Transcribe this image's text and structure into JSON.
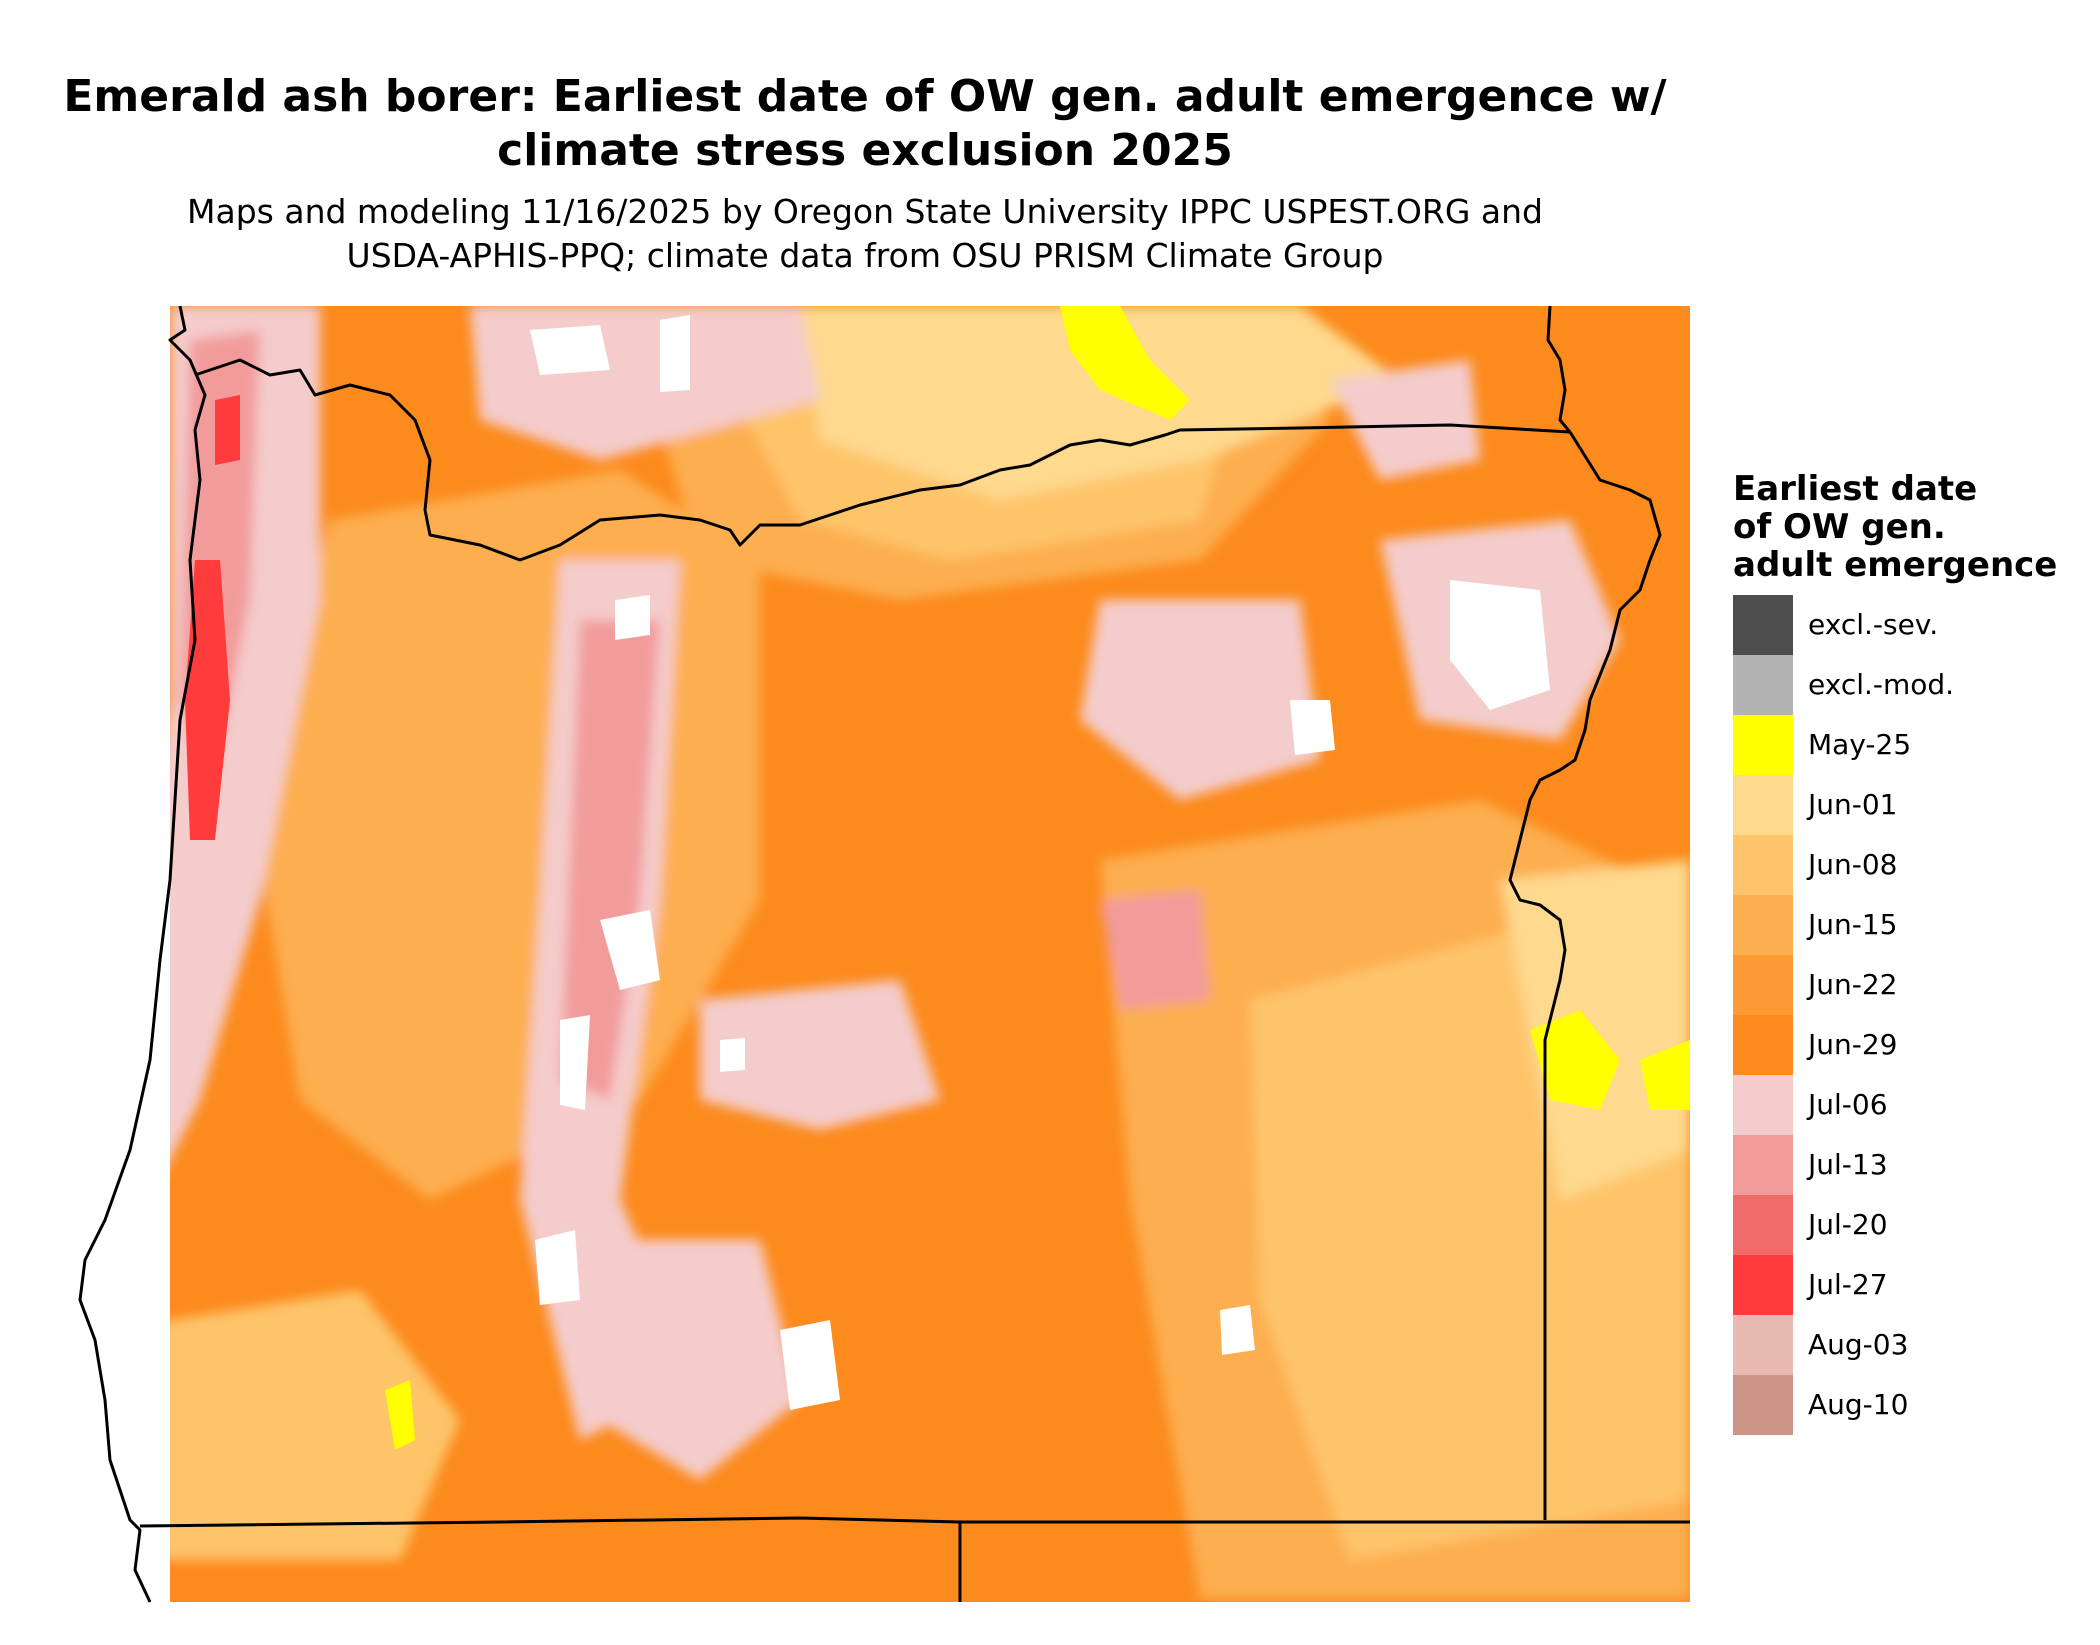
{
  "title": {
    "line1": "Emerald ash borer: Earliest date of OW gen. adult emergence w/",
    "line2": "climate stress exclusion 2025"
  },
  "subtitle": {
    "line1": "Maps and modeling 11/16/2025 by Oregon State University IPPC USPEST.ORG and",
    "line2": "USDA-APHIS-PPQ; climate data from OSU PRISM Climate Group"
  },
  "legend": {
    "title_lines": [
      "Earliest date",
      "of OW gen.",
      "adult emergence"
    ],
    "items": [
      {
        "label": "excl.-sev.",
        "color": "#4d4d4d"
      },
      {
        "label": "excl.-mod.",
        "color": "#b3b3b3"
      },
      {
        "label": "May-25",
        "color": "#ffff00"
      },
      {
        "label": "Jun-01",
        "color": "#fed98e"
      },
      {
        "label": "Jun-08",
        "color": "#fec46b"
      },
      {
        "label": "Jun-15",
        "color": "#fdae4f"
      },
      {
        "label": "Jun-22",
        "color": "#fd9a33"
      },
      {
        "label": "Jun-29",
        "color": "#fc8a1c"
      },
      {
        "label": "Jul-06",
        "color": "#f4cccc"
      },
      {
        "label": "Jul-13",
        "color": "#f29b9b"
      },
      {
        "label": "Jul-20",
        "color": "#f26b6b"
      },
      {
        "label": "Jul-27",
        "color": "#ff3b3b"
      },
      {
        "label": "Aug-03",
        "color": "#e8b9b0"
      },
      {
        "label": "Aug-10",
        "color": "#cd9588"
      }
    ]
  },
  "map": {
    "region": "Oregon",
    "background_color": "#fc8a1c",
    "no_data_color": "#ffffff",
    "boundary_color": "#000000"
  }
}
